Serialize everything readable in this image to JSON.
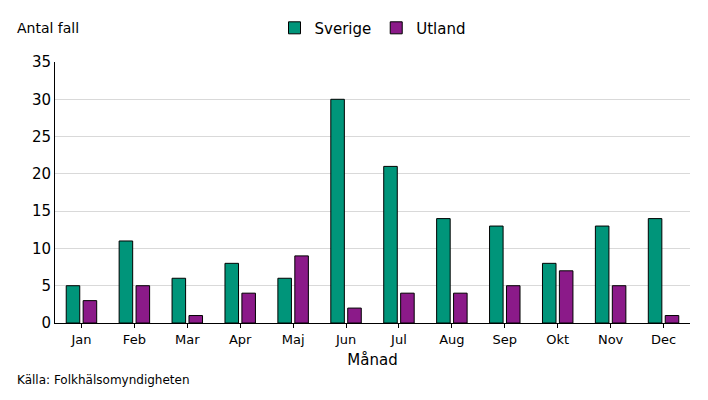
{
  "chart_data": {
    "type": "bar",
    "ylabel": "Antal fall",
    "xlabel": "Månad",
    "source": "Källa: Folkhälsomyndigheten",
    "categories": [
      "Jan",
      "Feb",
      "Mar",
      "Apr",
      "Maj",
      "Jun",
      "Jul",
      "Aug",
      "Sep",
      "Okt",
      "Nov",
      "Dec"
    ],
    "series": [
      {
        "name": "Sverige",
        "color": "#00957a",
        "values": [
          5,
          11,
          6,
          8,
          6,
          30,
          21,
          14,
          13,
          8,
          13,
          14
        ]
      },
      {
        "name": "Utland",
        "color": "#8b1a89",
        "values": [
          3,
          5,
          1,
          4,
          9,
          2,
          4,
          4,
          5,
          7,
          5,
          1
        ]
      }
    ],
    "ylim": [
      0,
      35
    ],
    "yticks": [
      0,
      5,
      10,
      15,
      20,
      25,
      30,
      35
    ],
    "grid": true,
    "legend": "top"
  }
}
